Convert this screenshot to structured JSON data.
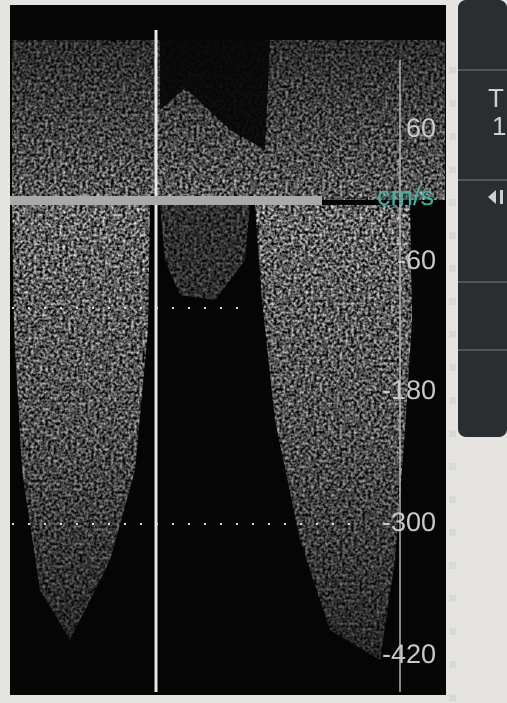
{
  "scale": {
    "labels": [
      "60",
      "cm/s",
      "-60",
      "-180",
      "-300",
      "-420"
    ]
  },
  "side_panel": {
    "texts": [
      "T",
      "1"
    ]
  }
}
